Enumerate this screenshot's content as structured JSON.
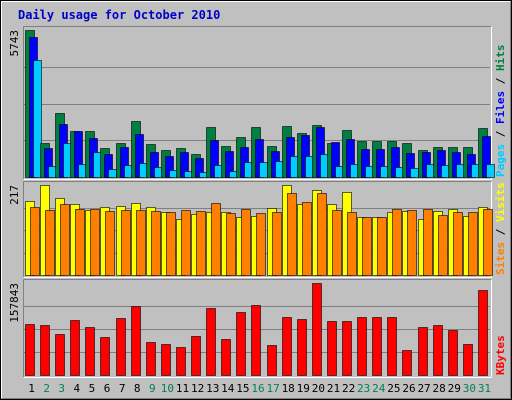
{
  "chart_data": {
    "type": "bar",
    "title": "Daily usage for October 2010",
    "days": [
      "1",
      "2",
      "3",
      "4",
      "5",
      "6",
      "7",
      "8",
      "9",
      "10",
      "11",
      "12",
      "13",
      "14",
      "15",
      "16",
      "17",
      "18",
      "19",
      "20",
      "21",
      "22",
      "23",
      "24",
      "25",
      "26",
      "27",
      "28",
      "29",
      "30",
      "31"
    ],
    "weekend_days": [
      "2",
      "3",
      "9",
      "10",
      "16",
      "17",
      "23",
      "24",
      "30",
      "31"
    ],
    "panels": [
      {
        "name": "pages_files_hits",
        "ymax_label": "5743",
        "ymax": 5743,
        "legend": [
          {
            "text": "Pages",
            "color": "#00ccff"
          },
          {
            "text": " / ",
            "color": "#000000"
          },
          {
            "text": "Files",
            "color": "#0000ff"
          },
          {
            "text": " / ",
            "color": "#000000"
          },
          {
            "text": "Hits",
            "color": "#008040"
          }
        ],
        "series": [
          {
            "name": "Hits",
            "color": "#008040",
            "values": [
              5743,
              1340,
              2510,
              1780,
              1780,
              1130,
              1320,
              2200,
              1290,
              1050,
              1120,
              890,
              1970,
              1210,
              1560,
              1940,
              1200,
              1980,
              1730,
              2040,
              1330,
              1830,
              1400,
              1400,
              1400,
              1330,
              1040,
              1190,
              1180,
              1160,
              1910
            ]
          },
          {
            "name": "Files",
            "color": "#0000ff",
            "values": [
              5450,
              1130,
              2060,
              1800,
              1510,
              900,
              1180,
              1680,
              960,
              830,
              960,
              760,
              1440,
              1000,
              1160,
              1480,
              1000,
              1550,
              1630,
              1950,
              1380,
              1480,
              1100,
              1110,
              1160,
              950,
              980,
              1040,
              970,
              880,
              1600
            ]
          },
          {
            "name": "Pages",
            "color": "#00ccff",
            "values": [
              4580,
              430,
              1310,
              500,
              970,
              310,
              460,
              530,
              410,
              270,
              240,
              180,
              480,
              220,
              570,
              590,
              630,
              810,
              830,
              880,
              420,
              520,
              420,
              430,
              400,
              370,
              510,
              450,
              520,
              510,
              520
            ]
          }
        ]
      },
      {
        "name": "sites_visits",
        "ymax_label": "217",
        "ymax": 217,
        "legend": [
          {
            "text": "Sites",
            "color": "#ff8000"
          },
          {
            "text": " / ",
            "color": "#000000"
          },
          {
            "text": "Visits",
            "color": "#ffff00"
          }
        ],
        "series": [
          {
            "name": "Visits",
            "color": "#ffff00",
            "values": [
              178,
              217,
              186,
              170,
              157,
              163,
              167,
              174,
              164,
              153,
              136,
              146,
              152,
              152,
              141,
              143,
              162,
              217,
              170,
              205,
              170,
              200,
              141,
              141,
              151,
              155,
              134,
              154,
              158,
              143,
              164
            ]
          },
          {
            "name": "Sites",
            "color": "#ff8000",
            "values": [
              163,
              156,
              170,
              158,
              160,
              155,
              156,
              157,
              155,
              152,
              157,
              155,
              173,
              149,
              160,
              150,
              151,
              197,
              175,
              197,
              157,
              152,
              140,
              141,
              159,
              156,
              159,
              145,
              153,
              153,
              160
            ]
          }
        ]
      },
      {
        "name": "kbytes",
        "ymax_label": "157843",
        "ymax": 157843,
        "legend": [
          {
            "text": "KBytes",
            "color": "#ff0000"
          }
        ],
        "series": [
          {
            "name": "KBytes",
            "color": "#ff0000",
            "values": [
              87000,
              85000,
              71000,
              95000,
              82000,
              65000,
              98000,
              118000,
              57000,
              53000,
              48000,
              67000,
              115000,
              62000,
              108000,
              120000,
              52000,
              99000,
              96000,
              157843,
              92000,
              92000,
              100000,
              100000,
              99000,
              43000,
              83000,
              86000,
              77000,
              53000,
              145000
            ]
          }
        ]
      }
    ]
  }
}
